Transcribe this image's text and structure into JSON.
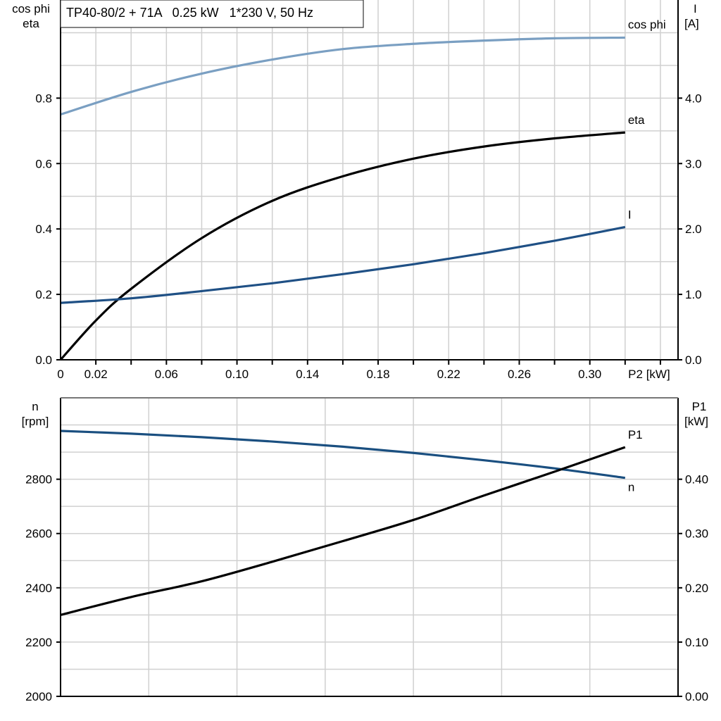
{
  "chart_data": [
    {
      "type": "line",
      "title": "TP40-80/2 + 71A   0.25 kW   1*230 V, 50 Hz",
      "xlabel": "P2 [kW]",
      "ylabel_left": [
        "cos phi",
        "eta"
      ],
      "ylabel_right": [
        "I",
        "[A]"
      ],
      "xlim": [
        0,
        0.35
      ],
      "ylim_left": [
        0,
        1.1
      ],
      "ylim_right": [
        0,
        5.5
      ],
      "x_tick_labels": [
        "0",
        "0.02",
        "0.06",
        "0.10",
        "0.14",
        "0.18",
        "0.22",
        "0.26",
        "0.30"
      ],
      "x_tick_values": [
        0,
        0.02,
        0.06,
        0.1,
        0.14,
        0.18,
        0.22,
        0.26,
        0.3
      ],
      "y_left_ticks": [
        "0.0",
        "0.2",
        "0.4",
        "0.6",
        "0.8"
      ],
      "y_right_ticks": [
        "0.0",
        "1.0",
        "2.0",
        "3.0",
        "4.0"
      ],
      "grid": true,
      "series": [
        {
          "name": "cos phi",
          "axis": "left",
          "color": "#7a9fc2",
          "x": [
            0,
            0.04,
            0.08,
            0.12,
            0.16,
            0.2,
            0.24,
            0.28,
            0.32
          ],
          "y": [
            0.75,
            0.819,
            0.875,
            0.918,
            0.95,
            0.966,
            0.976,
            0.983,
            0.985
          ]
        },
        {
          "name": "eta",
          "axis": "left",
          "color": "#000000",
          "x": [
            0,
            0.02,
            0.04,
            0.08,
            0.12,
            0.16,
            0.2,
            0.24,
            0.28,
            0.32
          ],
          "y": [
            0,
            0.12,
            0.217,
            0.372,
            0.486,
            0.561,
            0.615,
            0.652,
            0.677,
            0.695
          ]
        },
        {
          "name": "I",
          "axis": "right",
          "color": "#1f5085",
          "x": [
            0,
            0.04,
            0.08,
            0.12,
            0.16,
            0.2,
            0.24,
            0.28,
            0.32
          ],
          "y": [
            0.87,
            0.94,
            1.05,
            1.17,
            1.31,
            1.46,
            1.63,
            1.82,
            2.03
          ]
        }
      ]
    },
    {
      "type": "line",
      "xlim": [
        0,
        0.35
      ],
      "ylabel_left": [
        "n",
        "[rpm]"
      ],
      "ylabel_right": [
        "P1",
        "[kW]"
      ],
      "ylim_left": [
        2000,
        3100
      ],
      "ylim_right": [
        0,
        0.55
      ],
      "y_left_ticks": [
        "2000",
        "2200",
        "2400",
        "2600",
        "2800"
      ],
      "y_right_ticks": [
        "0.00",
        "0.10",
        "0.20",
        "0.30",
        "0.40"
      ],
      "grid": true,
      "series": [
        {
          "name": "n",
          "axis": "left",
          "color": "#1a4f80",
          "x": [
            0,
            0.04,
            0.08,
            0.12,
            0.16,
            0.2,
            0.24,
            0.28,
            0.32
          ],
          "y": [
            2978,
            2968,
            2955,
            2939,
            2920,
            2897,
            2870,
            2840,
            2805
          ]
        },
        {
          "name": "P1",
          "axis": "right",
          "color": "#000000",
          "x": [
            0,
            0.04,
            0.08,
            0.12,
            0.16,
            0.2,
            0.24,
            0.28,
            0.32
          ],
          "y": [
            0.15,
            0.183,
            0.212,
            0.248,
            0.286,
            0.325,
            0.37,
            0.414,
            0.459
          ]
        }
      ]
    }
  ]
}
